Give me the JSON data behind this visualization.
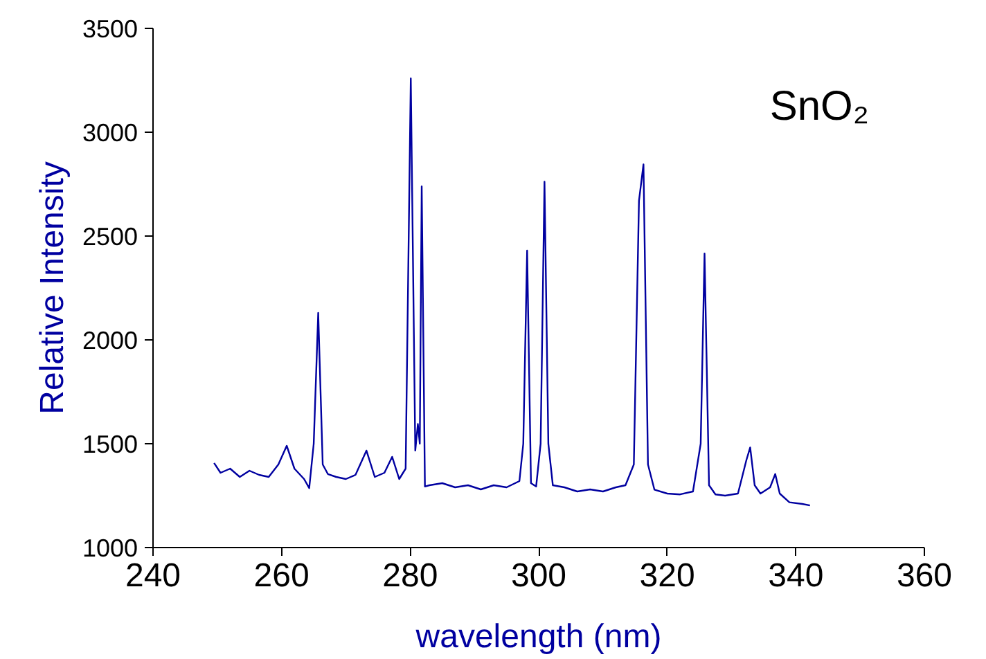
{
  "chart_data": {
    "type": "line",
    "xlabel": "wavelength (nm)",
    "ylabel": "Relative Intensity",
    "annotations": [
      "SnO₂"
    ],
    "x": [
      249.5,
      250.5,
      252,
      253.5,
      255,
      256.5,
      258,
      259.5,
      260.8,
      262,
      263.5,
      264.3,
      265,
      265.7,
      266.4,
      267.2,
      268.5,
      270,
      271.5,
      273.2,
      274.5,
      276,
      277.2,
      278.3,
      279.3,
      280.1,
      280.8,
      281.2,
      281.5,
      281.8,
      282.3,
      283,
      285,
      287,
      289,
      291,
      293,
      295,
      297,
      297.6,
      298.2,
      298.8,
      299.6,
      300.3,
      300.9,
      301.5,
      302.2,
      304,
      306,
      308,
      310,
      312,
      313.5,
      314.8,
      315.6,
      316.3,
      317,
      318,
      320,
      322,
      324,
      325.2,
      325.8,
      326.5,
      327.5,
      329,
      331,
      332.3,
      332.9,
      333.6,
      334.5,
      336,
      336.8,
      337.5,
      339,
      341,
      342.2
    ],
    "values": [
      1407,
      1360,
      1380,
      1340,
      1370,
      1350,
      1340,
      1400,
      1490,
      1380,
      1330,
      1286,
      1500,
      2130,
      1400,
      1354,
      1340,
      1330,
      1350,
      1467,
      1340,
      1360,
      1437,
      1330,
      1380,
      3259,
      1467,
      1595,
      1500,
      2739,
      1294,
      1300,
      1310,
      1290,
      1300,
      1280,
      1300,
      1290,
      1320,
      1500,
      2430,
      1310,
      1294,
      1500,
      2762,
      1500,
      1300,
      1290,
      1270,
      1280,
      1270,
      1290,
      1300,
      1400,
      2670,
      2845,
      1400,
      1279,
      1260,
      1256,
      1270,
      1500,
      2416,
      1300,
      1256,
      1250,
      1260,
      1420,
      1482,
      1300,
      1260,
      1290,
      1354,
      1260,
      1218,
      1210,
      1203
    ],
    "color": "#0000a0",
    "xlim": [
      240,
      360
    ],
    "ylim": [
      1000,
      3500
    ],
    "xticks": [
      240,
      260,
      280,
      300,
      320,
      340,
      360
    ],
    "yticks": [
      1000,
      1500,
      2000,
      2500,
      3000,
      3500
    ],
    "grid": false
  }
}
